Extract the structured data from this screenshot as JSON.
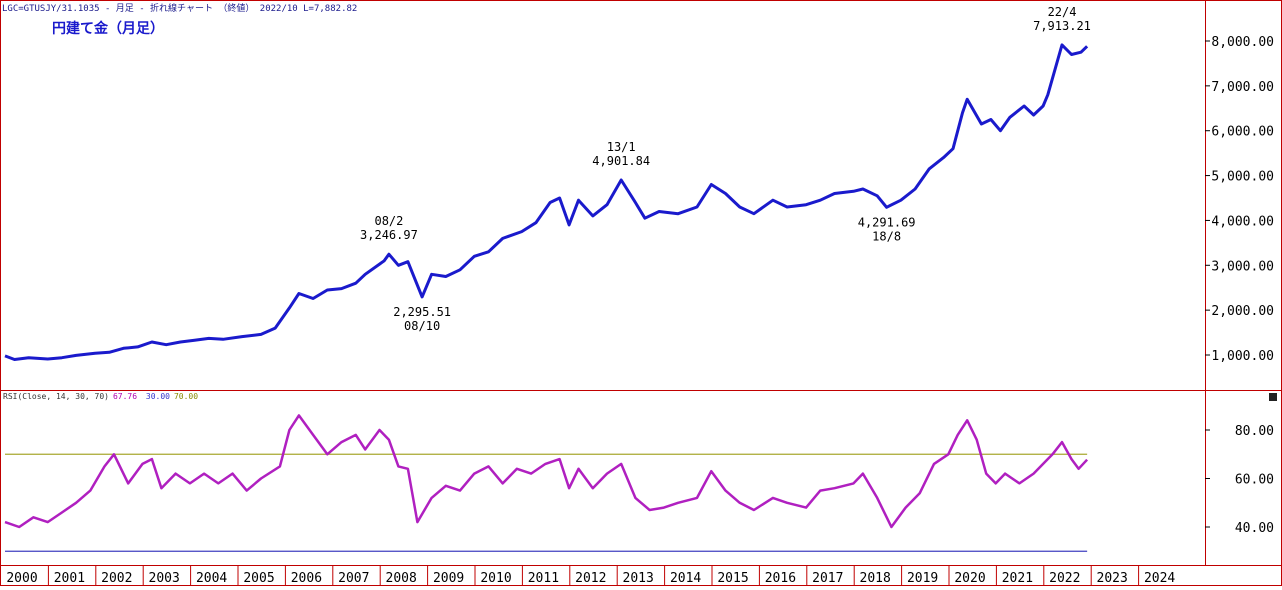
{
  "header": {
    "symbol_line": "LGC=GTUSJY/31.1035 - 月足 - 折れ線チャート （終値） 2022/10 L=7,882.82",
    "chart_title": "円建て金（月足）"
  },
  "rsi_legend": {
    "label": "RSI(Close, 14, 30, 70)",
    "value": "67.76",
    "low_level": "30.00",
    "high_level": "70.00",
    "colors": {
      "label": "#333333",
      "value": "#b000b0",
      "low_level": "#3333cc",
      "high_level": "#888800"
    }
  },
  "colors": {
    "price_line": "#1a1acc",
    "rsi_line": "#b020c0",
    "rsi_upper_line": "#a8a830",
    "rsi_lower_line": "#4040c0",
    "frame": "#c00000",
    "axis_text": "#000000"
  },
  "chart_data": [
    {
      "type": "line",
      "title": "円建て金（月足）",
      "ylim": [
        0,
        9000
      ],
      "y_ticks": [
        1000,
        2000,
        3000,
        4000,
        5000,
        6000,
        7000,
        8000
      ],
      "y_tick_labels": [
        "1,000.00",
        "2,000.00",
        "3,000.00",
        "4,000.00",
        "5,000.00",
        "6,000.00",
        "7,000.00",
        "8,000.00"
      ],
      "x_range": [
        2000.0,
        2025.0
      ],
      "series": [
        {
          "name": "Close",
          "points": [
            [
              2000.0,
              980
            ],
            [
              2000.2,
              900
            ],
            [
              2000.5,
              940
            ],
            [
              2000.9,
              910
            ],
            [
              2001.2,
              940
            ],
            [
              2001.5,
              990
            ],
            [
              2001.9,
              1040
            ],
            [
              2002.2,
              1060
            ],
            [
              2002.5,
              1150
            ],
            [
              2002.8,
              1180
            ],
            [
              2003.1,
              1290
            ],
            [
              2003.4,
              1230
            ],
            [
              2003.7,
              1290
            ],
            [
              2004.0,
              1330
            ],
            [
              2004.3,
              1370
            ],
            [
              2004.6,
              1350
            ],
            [
              2005.0,
              1410
            ],
            [
              2005.4,
              1460
            ],
            [
              2005.7,
              1600
            ],
            [
              2006.0,
              2050
            ],
            [
              2006.2,
              2370
            ],
            [
              2006.5,
              2260
            ],
            [
              2006.8,
              2450
            ],
            [
              2007.1,
              2480
            ],
            [
              2007.4,
              2600
            ],
            [
              2007.6,
              2800
            ],
            [
              2008.0,
              3100
            ],
            [
              2008.1,
              3246.97
            ],
            [
              2008.3,
              3000
            ],
            [
              2008.5,
              3080
            ],
            [
              2008.8,
              2295.51
            ],
            [
              2009.0,
              2800
            ],
            [
              2009.3,
              2750
            ],
            [
              2009.6,
              2900
            ],
            [
              2009.9,
              3200
            ],
            [
              2010.2,
              3300
            ],
            [
              2010.5,
              3600
            ],
            [
              2010.9,
              3750
            ],
            [
              2011.2,
              3950
            ],
            [
              2011.5,
              4400
            ],
            [
              2011.7,
              4500
            ],
            [
              2011.9,
              3900
            ],
            [
              2012.1,
              4450
            ],
            [
              2012.4,
              4100
            ],
            [
              2012.7,
              4350
            ],
            [
              2013.0,
              4901.84
            ],
            [
              2013.3,
              4400
            ],
            [
              2013.5,
              4050
            ],
            [
              2013.8,
              4200
            ],
            [
              2014.2,
              4150
            ],
            [
              2014.6,
              4300
            ],
            [
              2014.9,
              4800
            ],
            [
              2015.2,
              4600
            ],
            [
              2015.5,
              4300
            ],
            [
              2015.8,
              4150
            ],
            [
              2016.2,
              4450
            ],
            [
              2016.5,
              4300
            ],
            [
              2016.9,
              4350
            ],
            [
              2017.2,
              4450
            ],
            [
              2017.5,
              4600
            ],
            [
              2017.9,
              4650
            ],
            [
              2018.1,
              4700
            ],
            [
              2018.4,
              4550
            ],
            [
              2018.6,
              4291.69
            ],
            [
              2018.9,
              4450
            ],
            [
              2019.2,
              4700
            ],
            [
              2019.5,
              5150
            ],
            [
              2019.8,
              5400
            ],
            [
              2020.0,
              5600
            ],
            [
              2020.2,
              6400
            ],
            [
              2020.3,
              6700
            ],
            [
              2020.6,
              6150
            ],
            [
              2020.8,
              6250
            ],
            [
              2021.0,
              6000
            ],
            [
              2021.2,
              6300
            ],
            [
              2021.5,
              6550
            ],
            [
              2021.7,
              6350
            ],
            [
              2021.9,
              6550
            ],
            [
              2022.0,
              6800
            ],
            [
              2022.3,
              7913.21
            ],
            [
              2022.5,
              7700
            ],
            [
              2022.7,
              7750
            ],
            [
              2022.83,
              7882.82
            ]
          ]
        }
      ],
      "annotations": [
        {
          "x": 2008.1,
          "y": 3246.97,
          "date": "08/2",
          "value": "3,246.97",
          "placement": "above"
        },
        {
          "x": 2008.8,
          "y": 2295.51,
          "date": "08/10",
          "value": "2,295.51",
          "placement": "below"
        },
        {
          "x": 2013.0,
          "y": 4901.84,
          "date": "13/1",
          "value": "4,901.84",
          "placement": "above"
        },
        {
          "x": 2018.6,
          "y": 4291.69,
          "date": "18/8",
          "value": "4,291.69",
          "placement": "below"
        },
        {
          "x": 2022.3,
          "y": 7913.21,
          "date": "22/4",
          "value": "7,913.21",
          "placement": "above"
        }
      ]
    },
    {
      "type": "line",
      "title": "RSI(Close, 14, 30, 70)",
      "ylim": [
        25,
        95
      ],
      "y_ticks": [
        40,
        60,
        80
      ],
      "y_tick_labels": [
        "40.00",
        "60.00",
        "80.00"
      ],
      "x_range": [
        2000.0,
        2025.0
      ],
      "levels": [
        70,
        30
      ],
      "series": [
        {
          "name": "RSI",
          "points": [
            [
              2000.0,
              42
            ],
            [
              2000.3,
              40
            ],
            [
              2000.6,
              44
            ],
            [
              2000.9,
              42
            ],
            [
              2001.2,
              46
            ],
            [
              2001.5,
              50
            ],
            [
              2001.8,
              55
            ],
            [
              2002.1,
              65
            ],
            [
              2002.3,
              70
            ],
            [
              2002.6,
              58
            ],
            [
              2002.9,
              66
            ],
            [
              2003.1,
              68
            ],
            [
              2003.3,
              56
            ],
            [
              2003.6,
              62
            ],
            [
              2003.9,
              58
            ],
            [
              2004.2,
              62
            ],
            [
              2004.5,
              58
            ],
            [
              2004.8,
              62
            ],
            [
              2005.1,
              55
            ],
            [
              2005.4,
              60
            ],
            [
              2005.8,
              65
            ],
            [
              2006.0,
              80
            ],
            [
              2006.2,
              86
            ],
            [
              2006.5,
              78
            ],
            [
              2006.8,
              70
            ],
            [
              2007.1,
              75
            ],
            [
              2007.4,
              78
            ],
            [
              2007.6,
              72
            ],
            [
              2007.9,
              80
            ],
            [
              2008.1,
              76
            ],
            [
              2008.3,
              65
            ],
            [
              2008.5,
              64
            ],
            [
              2008.7,
              42
            ],
            [
              2009.0,
              52
            ],
            [
              2009.3,
              57
            ],
            [
              2009.6,
              55
            ],
            [
              2009.9,
              62
            ],
            [
              2010.2,
              65
            ],
            [
              2010.5,
              58
            ],
            [
              2010.8,
              64
            ],
            [
              2011.1,
              62
            ],
            [
              2011.4,
              66
            ],
            [
              2011.7,
              68
            ],
            [
              2011.9,
              56
            ],
            [
              2012.1,
              64
            ],
            [
              2012.4,
              56
            ],
            [
              2012.7,
              62
            ],
            [
              2013.0,
              66
            ],
            [
              2013.3,
              52
            ],
            [
              2013.6,
              47
            ],
            [
              2013.9,
              48
            ],
            [
              2014.2,
              50
            ],
            [
              2014.6,
              52
            ],
            [
              2014.9,
              63
            ],
            [
              2015.2,
              55
            ],
            [
              2015.5,
              50
            ],
            [
              2015.8,
              47
            ],
            [
              2016.2,
              52
            ],
            [
              2016.5,
              50
            ],
            [
              2016.9,
              48
            ],
            [
              2017.2,
              55
            ],
            [
              2017.5,
              56
            ],
            [
              2017.9,
              58
            ],
            [
              2018.1,
              62
            ],
            [
              2018.4,
              52
            ],
            [
              2018.7,
              40
            ],
            [
              2019.0,
              48
            ],
            [
              2019.3,
              54
            ],
            [
              2019.6,
              66
            ],
            [
              2019.9,
              70
            ],
            [
              2020.1,
              78
            ],
            [
              2020.3,
              84
            ],
            [
              2020.5,
              76
            ],
            [
              2020.7,
              62
            ],
            [
              2020.9,
              58
            ],
            [
              2021.1,
              62
            ],
            [
              2021.4,
              58
            ],
            [
              2021.7,
              62
            ],
            [
              2021.9,
              66
            ],
            [
              2022.1,
              70
            ],
            [
              2022.3,
              75
            ],
            [
              2022.5,
              68
            ],
            [
              2022.65,
              64
            ],
            [
              2022.83,
              67.76
            ]
          ]
        }
      ]
    }
  ],
  "x_axis": {
    "labels": [
      "2000",
      "2001",
      "2002",
      "2003",
      "2004",
      "2005",
      "2006",
      "2007",
      "2008",
      "2009",
      "2010",
      "2011",
      "2012",
      "2013",
      "2014",
      "2015",
      "2016",
      "2017",
      "2018",
      "2019",
      "2020",
      "2021",
      "2022",
      "2023",
      "2024"
    ]
  }
}
